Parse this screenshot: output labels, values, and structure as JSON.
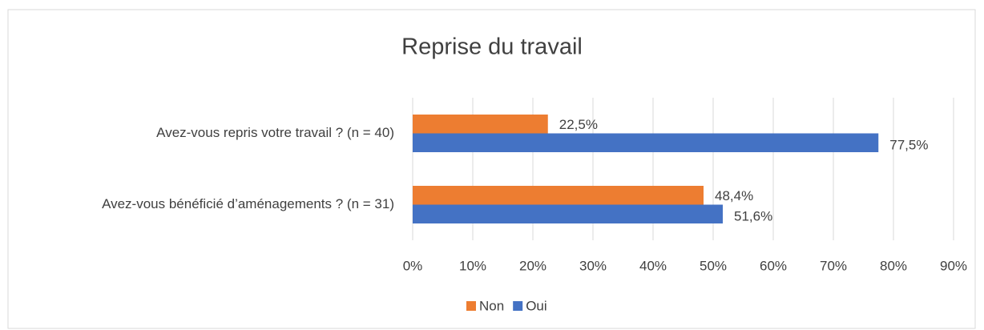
{
  "chart_data": {
    "type": "bar",
    "orientation": "horizontal",
    "title": "Reprise du travail",
    "categories": [
      "Avez-vous repris votre travail ? (n = 40)",
      "Avez-vous bénéficié d’aménagements ? (n = 31)"
    ],
    "series": [
      {
        "name": "Non",
        "color": "#ed7d31",
        "values": [
          22.5,
          48.4
        ],
        "value_labels": [
          "22,5%",
          "48,4%"
        ]
      },
      {
        "name": "Oui",
        "color": "#4472c4",
        "values": [
          77.5,
          51.6
        ],
        "value_labels": [
          "77,5%",
          "51,6%"
        ]
      }
    ],
    "xlim": [
      0,
      90
    ],
    "xticks": [
      {
        "value": 0,
        "label": "0%"
      },
      {
        "value": 10,
        "label": "10%"
      },
      {
        "value": 20,
        "label": "20%"
      },
      {
        "value": 30,
        "label": "30%"
      },
      {
        "value": 40,
        "label": "40%"
      },
      {
        "value": 50,
        "label": "50%"
      },
      {
        "value": 60,
        "label": "60%"
      },
      {
        "value": 70,
        "label": "70%"
      },
      {
        "value": 80,
        "label": "80%"
      },
      {
        "value": 90,
        "label": "90%"
      }
    ],
    "grid": true,
    "legend": "bottom"
  }
}
